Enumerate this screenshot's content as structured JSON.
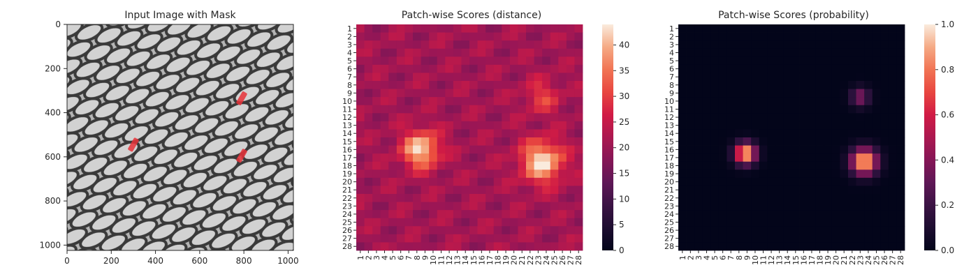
{
  "chart_data": [
    {
      "type": "image",
      "title": "Input Image with Mask",
      "x_ticks": [
        "0",
        "200",
        "400",
        "600",
        "800",
        "1000"
      ],
      "y_ticks": [
        "0",
        "200",
        "400",
        "600",
        "800",
        "1000"
      ],
      "x_range": [
        0,
        1024
      ],
      "y_range": [
        0,
        1024
      ],
      "defect_regions": [
        {
          "x": 790,
          "y": 335
        },
        {
          "x": 300,
          "y": 545
        },
        {
          "x": 790,
          "y": 595
        }
      ],
      "grid": false
    },
    {
      "type": "heatmap",
      "title": "Patch-wise Scores (distance)",
      "rows": 28,
      "cols": 28,
      "row_labels": [
        "1",
        "2",
        "3",
        "4",
        "5",
        "6",
        "7",
        "8",
        "9",
        "10",
        "11",
        "12",
        "13",
        "14",
        "15",
        "16",
        "17",
        "18",
        "19",
        "20",
        "21",
        "22",
        "23",
        "24",
        "25",
        "26",
        "27",
        "28"
      ],
      "col_labels": [
        "1",
        "2",
        "3",
        "4",
        "5",
        "6",
        "7",
        "8",
        "9",
        "10",
        "11",
        "12",
        "13",
        "14",
        "15",
        "16",
        "17",
        "18",
        "19",
        "20",
        "21",
        "22",
        "23",
        "24",
        "25",
        "26",
        "27",
        "28"
      ],
      "background": 21,
      "peaks": [
        {
          "row": 16,
          "col": 8.5,
          "value": 43,
          "sigma": 1.6
        },
        {
          "row": 17.5,
          "col": 23.5,
          "value": 44,
          "sigma": 1.8
        },
        {
          "row": 9.5,
          "col": 23.5,
          "value": 30,
          "sigma": 1.5
        }
      ],
      "colorbar": {
        "min": 0,
        "max": 44,
        "ticks": [
          "0",
          "5",
          "10",
          "15",
          "20",
          "25",
          "30",
          "35",
          "40"
        ]
      },
      "colormap": "rocket"
    },
    {
      "type": "heatmap",
      "title": "Patch-wise Scores (probability)",
      "rows": 28,
      "cols": 28,
      "row_labels": [
        "1",
        "2",
        "3",
        "4",
        "5",
        "6",
        "7",
        "8",
        "9",
        "10",
        "11",
        "12",
        "13",
        "14",
        "15",
        "16",
        "17",
        "18",
        "19",
        "20",
        "21",
        "22",
        "23",
        "24",
        "25",
        "26",
        "27",
        "28"
      ],
      "col_labels": [
        "1",
        "2",
        "3",
        "4",
        "5",
        "6",
        "7",
        "8",
        "9",
        "10",
        "11",
        "12",
        "13",
        "14",
        "15",
        "16",
        "17",
        "18",
        "19",
        "20",
        "21",
        "22",
        "23",
        "24",
        "25",
        "26",
        "27",
        "28"
      ],
      "background": 0,
      "peaks": [
        {
          "row": 16.5,
          "col": 8.8,
          "value": 1.0,
          "sigma": 0.9
        },
        {
          "row": 17.5,
          "col": 23.5,
          "value": 1.0,
          "sigma": 1.1
        },
        {
          "row": 9.5,
          "col": 23,
          "value": 0.4,
          "sigma": 0.8
        }
      ],
      "colorbar": {
        "min": 0,
        "max": 1,
        "ticks": [
          "0.0",
          "0.2",
          "0.4",
          "0.6",
          "0.8",
          "1.0"
        ]
      },
      "colormap": "rocket"
    }
  ]
}
